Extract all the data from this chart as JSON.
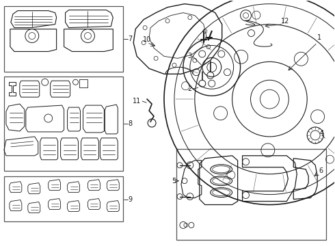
{
  "bg_color": "#ffffff",
  "figsize": [
    4.9,
    3.6
  ],
  "dpi": 100,
  "image_b64": ""
}
